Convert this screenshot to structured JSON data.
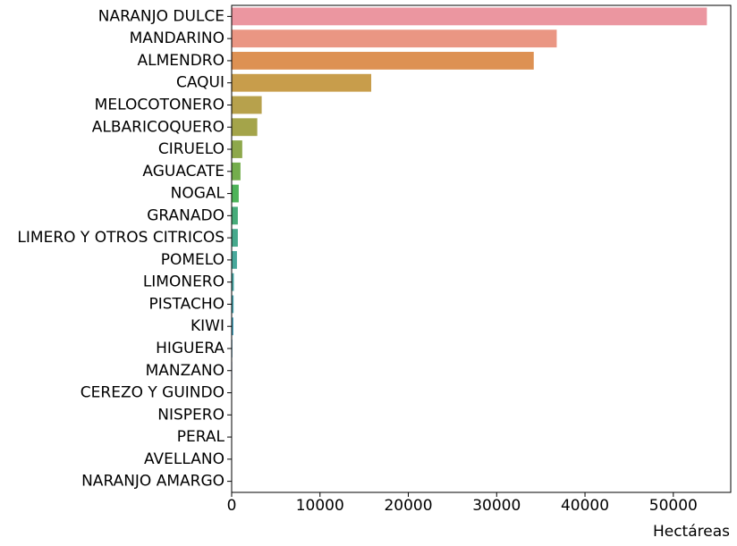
{
  "chart_data": {
    "type": "bar",
    "orientation": "horizontal",
    "title": "",
    "xlabel": "Hectáreas",
    "ylabel": "",
    "xlim": [
      0,
      56500
    ],
    "xticks": [
      0,
      10000,
      20000,
      30000,
      40000,
      50000
    ],
    "xtick_labels": [
      "0",
      "10000",
      "20000",
      "30000",
      "40000",
      "50000"
    ],
    "grid": false,
    "categories": [
      "NARANJO DULCE",
      "MANDARINO",
      "ALMENDRO",
      "CAQUI",
      "MELOCOTONERO",
      "ALBARICOQUERO",
      "CIRUELO",
      "AGUACATE",
      "NOGAL",
      "GRANADO",
      "LIMERO Y OTROS CITRICOS",
      "POMELO",
      "LIMONERO",
      "PISTACHO",
      "KIWI",
      "HIGUERA",
      "MANZANO",
      "CEREZO Y GUINDO",
      "NISPERO",
      "PERAL",
      "AVELLANO",
      "NARANJO AMARGO"
    ],
    "values": [
      53800,
      36800,
      34200,
      15800,
      3400,
      2900,
      1200,
      1000,
      800,
      700,
      700,
      600,
      250,
      220,
      200,
      80,
      60,
      50,
      40,
      30,
      20,
      10
    ],
    "colors": [
      "#eb96a0",
      "#ea9683",
      "#dd9153",
      "#c89d4b",
      "#b7a14c",
      "#a4a44a",
      "#8ea84b",
      "#74ad4c",
      "#4eb359",
      "#47ab79",
      "#47a98c",
      "#48a89b",
      "#49a7a6",
      "#4aa5b1",
      "#4ca3bc",
      "#55a0cb",
      "#6c9bd8",
      "#9794e2",
      "#b68ae6",
      "#ce84e5",
      "#e07fd7",
      "#e98bbc"
    ]
  }
}
